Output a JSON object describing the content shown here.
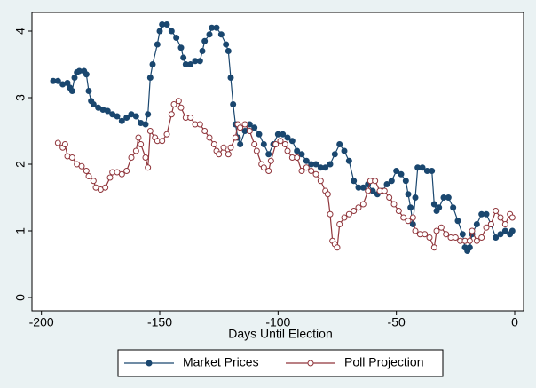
{
  "chart_data": {
    "type": "line",
    "x_label": "Days Until Election",
    "xlim": [
      -204,
      3.75
    ],
    "xticks": [
      -200,
      -150,
      -100,
      -50,
      0
    ],
    "ylim": [
      -0.2,
      4.28
    ],
    "yticks": [
      0,
      1,
      2,
      3,
      4
    ],
    "grid": false,
    "legend": "bottom",
    "series": [
      {
        "name": "Market Prices",
        "color": "#1a476f",
        "marker": "filled",
        "x": [
          -195,
          -193,
          -191,
          -189,
          -188,
          -187,
          -186,
          -185,
          -184,
          -182,
          -181,
          -180,
          -179,
          -178,
          -176,
          -174,
          -172,
          -170,
          -168,
          -166,
          -164,
          -162,
          -160,
          -158,
          -156,
          -155,
          -154,
          -153,
          -151,
          -150,
          -149,
          -147,
          -145,
          -143,
          -141,
          -140,
          -139,
          -137,
          -135,
          -133,
          -132,
          -131,
          -129,
          -128,
          -126,
          -124,
          -122,
          -121,
          -120,
          -119,
          -118,
          -117,
          -116,
          -114,
          -112,
          -110,
          -108,
          -106,
          -104,
          -102,
          -100,
          -98,
          -96,
          -94,
          -92,
          -90,
          -88,
          -86,
          -84,
          -82,
          -80,
          -78,
          -76,
          -74,
          -72,
          -70,
          -68,
          -66,
          -64,
          -62,
          -60,
          -58,
          -56,
          -54,
          -52,
          -50,
          -48,
          -46,
          -45,
          -44,
          -43,
          -42,
          -41,
          -39,
          -37,
          -35,
          -34,
          -33,
          -32,
          -30,
          -28,
          -26,
          -24,
          -22,
          -21,
          -20,
          -19,
          -18,
          -16,
          -14,
          -12,
          -10,
          -8,
          -6,
          -4,
          -2,
          -1
        ],
        "values": [
          3.25,
          3.25,
          3.2,
          3.22,
          3.15,
          3.1,
          3.3,
          3.38,
          3.4,
          3.4,
          3.35,
          3.1,
          2.95,
          2.9,
          2.85,
          2.82,
          2.8,
          2.75,
          2.72,
          2.65,
          2.7,
          2.75,
          2.72,
          2.62,
          2.6,
          2.75,
          3.3,
          3.5,
          3.8,
          4.0,
          4.1,
          4.1,
          4.0,
          3.9,
          3.75,
          3.6,
          3.5,
          3.5,
          3.55,
          3.55,
          3.7,
          3.85,
          3.95,
          4.05,
          4.05,
          3.95,
          3.8,
          3.7,
          3.3,
          2.9,
          2.6,
          2.4,
          2.3,
          2.5,
          2.6,
          2.55,
          2.45,
          2.3,
          2.15,
          2.3,
          2.45,
          2.45,
          2.4,
          2.35,
          2.2,
          2.15,
          2.05,
          2.0,
          2.0,
          1.95,
          1.95,
          2.0,
          2.15,
          2.3,
          2.2,
          2.05,
          1.75,
          1.65,
          1.65,
          1.7,
          1.6,
          1.55,
          1.6,
          1.7,
          1.75,
          1.9,
          1.85,
          1.75,
          1.55,
          1.35,
          1.1,
          1.5,
          1.95,
          1.95,
          1.9,
          1.9,
          1.4,
          1.3,
          1.35,
          1.5,
          1.5,
          1.35,
          1.15,
          0.95,
          0.75,
          0.7,
          0.75,
          0.95,
          1.1,
          1.25,
          1.25,
          1.1,
          0.9,
          0.95,
          1.0,
          0.95,
          1.0
        ]
      },
      {
        "name": "Poll Projection",
        "color": "#90353b",
        "marker": "hollow",
        "x": [
          -193,
          -191,
          -190,
          -189,
          -187,
          -185,
          -183,
          -181,
          -180,
          -178,
          -177,
          -175,
          -173,
          -171,
          -170,
          -168,
          -166,
          -164,
          -162,
          -160,
          -159,
          -158,
          -156,
          -155,
          -154,
          -152,
          -151,
          -149,
          -147,
          -145,
          -144,
          -142,
          -141,
          -139,
          -137,
          -135,
          -133,
          -131,
          -129,
          -127,
          -126,
          -125,
          -123,
          -121,
          -120,
          -118,
          -117,
          -116,
          -114,
          -112,
          -110,
          -109,
          -107,
          -106,
          -104,
          -103,
          -101,
          -99,
          -97,
          -96,
          -94,
          -92,
          -90,
          -88,
          -86,
          -84,
          -82,
          -80,
          -79,
          -78,
          -77,
          -76,
          -75,
          -74,
          -72,
          -70,
          -68,
          -66,
          -64,
          -62,
          -61,
          -59,
          -57,
          -55,
          -53,
          -51,
          -49,
          -47,
          -45,
          -43,
          -42,
          -40,
          -38,
          -36,
          -34,
          -33,
          -31,
          -29,
          -27,
          -25,
          -23,
          -21,
          -19,
          -18,
          -16,
          -14,
          -12,
          -10,
          -8,
          -6,
          -4,
          -2,
          -1
        ],
        "values": [
          2.32,
          2.25,
          2.3,
          2.12,
          2.1,
          2.0,
          1.97,
          1.9,
          1.82,
          1.75,
          1.65,
          1.62,
          1.65,
          1.8,
          1.88,
          1.88,
          1.85,
          1.9,
          2.1,
          2.2,
          2.4,
          2.3,
          2.1,
          1.95,
          2.5,
          2.4,
          2.35,
          2.35,
          2.45,
          2.75,
          2.9,
          2.95,
          2.85,
          2.7,
          2.7,
          2.6,
          2.6,
          2.5,
          2.4,
          2.3,
          2.2,
          2.15,
          2.25,
          2.15,
          2.25,
          2.4,
          2.6,
          2.55,
          2.6,
          2.5,
          2.3,
          2.2,
          2.0,
          1.95,
          1.9,
          2.05,
          2.3,
          2.35,
          2.3,
          2.2,
          2.1,
          2.1,
          1.9,
          1.95,
          1.9,
          1.85,
          1.75,
          1.6,
          1.55,
          1.25,
          0.85,
          0.8,
          0.75,
          1.1,
          1.2,
          1.25,
          1.3,
          1.35,
          1.4,
          1.6,
          1.75,
          1.75,
          1.6,
          1.6,
          1.5,
          1.4,
          1.3,
          1.2,
          1.15,
          1.2,
          1.0,
          0.95,
          0.95,
          0.9,
          0.75,
          1.0,
          1.05,
          0.95,
          0.9,
          0.9,
          0.85,
          0.85,
          0.85,
          1.0,
          0.85,
          0.9,
          1.05,
          1.1,
          1.3,
          1.2,
          1.1,
          1.25,
          1.2
        ]
      }
    ]
  }
}
